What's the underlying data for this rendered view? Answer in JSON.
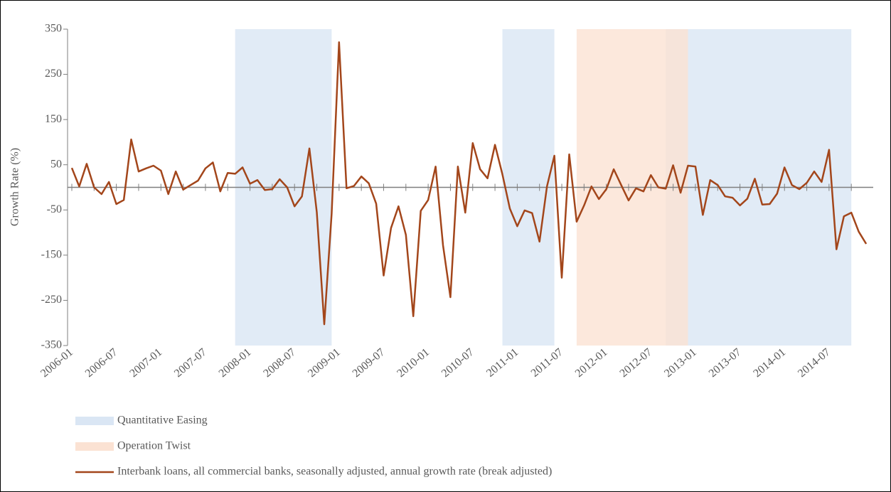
{
  "chart_data": {
    "type": "line",
    "y_label": "Growth Rate (%)",
    "categories": [
      "2006-01",
      null,
      null,
      null,
      null,
      null,
      "2006-07",
      null,
      null,
      null,
      null,
      null,
      "2007-01",
      null,
      null,
      null,
      null,
      null,
      "2007-07",
      null,
      null,
      null,
      null,
      null,
      "2008-01",
      null,
      null,
      null,
      null,
      null,
      "2008-07",
      null,
      null,
      null,
      null,
      null,
      "2009-01",
      null,
      null,
      null,
      null,
      null,
      "2009-07",
      null,
      null,
      null,
      null,
      null,
      "2010-01",
      null,
      null,
      null,
      null,
      null,
      "2010-07",
      null,
      null,
      null,
      null,
      null,
      "2011-01",
      null,
      null,
      null,
      null,
      null,
      "2011-07",
      null,
      null,
      null,
      null,
      null,
      "2012-01",
      null,
      null,
      null,
      null,
      null,
      "2012-07",
      null,
      null,
      null,
      null,
      null,
      "2013-01",
      null,
      null,
      null,
      null,
      null,
      "2013-07",
      null,
      null,
      null,
      null,
      null,
      "2014-01",
      null,
      null,
      null,
      null,
      null,
      "2014-07",
      null,
      null,
      null,
      null,
      null
    ],
    "series": [
      {
        "name": "Interbank loans, all commercial banks, seasonally adjusted, annual growth rate (break adjusted)",
        "color": "#a3461b",
        "values": [
          43,
          2,
          52,
          0,
          -15,
          12,
          -37,
          -28,
          106,
          35,
          42,
          48,
          37,
          -15,
          35,
          -5,
          5,
          15,
          42,
          55,
          -9,
          32,
          30,
          44,
          8,
          16,
          -6,
          -4,
          18,
          0,
          -42,
          -20,
          86,
          -55,
          -303,
          -58,
          321,
          -2,
          3,
          24,
          9,
          -36,
          -195,
          -90,
          -42,
          -105,
          -285,
          -52,
          -28,
          46,
          -128,
          -243,
          46,
          -56,
          98,
          40,
          20,
          94,
          29,
          -47,
          -86,
          -51,
          -57,
          -120,
          2,
          70,
          -200,
          73,
          -76,
          -40,
          2,
          -26,
          -4,
          40,
          5,
          -29,
          -2,
          -9,
          27,
          0,
          -3,
          49,
          -12,
          48,
          46,
          -61,
          16,
          5,
          -20,
          -23,
          -40,
          -25,
          19,
          -38,
          -37,
          -14,
          44,
          5,
          -4,
          10,
          35,
          12,
          83,
          -137,
          -64,
          -56,
          -98,
          -125
        ]
      }
    ],
    "bands": [
      {
        "name": "Quantitative Easing",
        "color": "#dae6f4",
        "ranges": [
          [
            "2007-11",
            "2008-12"
          ],
          [
            "2010-11",
            "2011-06"
          ],
          [
            "2012-09",
            "2014-10"
          ]
        ]
      },
      {
        "name": "Operation Twist",
        "color": "#fbe2d3",
        "ranges": [
          [
            "2011-09",
            "2012-12"
          ]
        ]
      }
    ],
    "ylim": [
      -350,
      350
    ],
    "yticks": [
      -350,
      -250,
      -150,
      -50,
      50,
      150,
      250,
      350
    ]
  }
}
